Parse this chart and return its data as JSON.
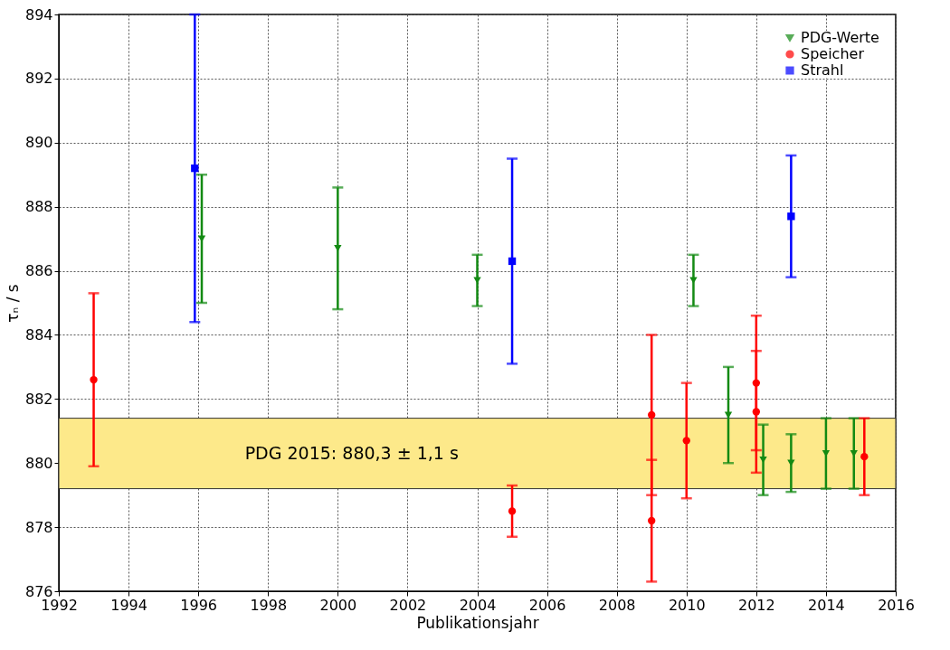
{
  "chart_data": {
    "type": "scatter",
    "xlabel": "Publikationsjahr",
    "ylabel": "τₙ / s",
    "xlim": [
      1992,
      2016
    ],
    "xticks": [
      1992,
      1994,
      1996,
      1998,
      2000,
      2002,
      2004,
      2006,
      2008,
      2010,
      2012,
      2014,
      2016
    ],
    "ylim": [
      876,
      894
    ],
    "yticks": [
      876,
      878,
      880,
      882,
      884,
      886,
      888,
      890,
      892,
      894
    ],
    "grid": true,
    "legend": "top right",
    "bands": [
      {
        "axis": "y",
        "from": 879.2,
        "to": 881.4,
        "label": "PDG 2015: 880,3 ± 1,1 s",
        "color": "#fde98a"
      }
    ],
    "series": [
      {
        "name": "PDG-Werte",
        "color": "#138a13",
        "marker": "triangle",
        "x": [
          1996.1,
          2000,
          2004,
          2010.2,
          2011.2,
          2012.2,
          2013,
          2014,
          2014.8
        ],
        "values": [
          887.0,
          886.7,
          885.7,
          885.7,
          881.5,
          880.1,
          880.0,
          880.3,
          880.3
        ],
        "errors": [
          [
            885.0,
            889.0
          ],
          [
            884.8,
            888.6
          ],
          [
            884.9,
            886.5
          ],
          [
            884.9,
            886.5
          ],
          [
            880.0,
            883.0
          ],
          [
            879.0,
            881.2
          ],
          [
            879.1,
            880.9
          ],
          [
            879.2,
            881.4
          ],
          [
            879.2,
            881.4
          ]
        ]
      },
      {
        "name": "Speicher",
        "color": "#ff0000",
        "marker": "circle",
        "x": [
          1993,
          2005,
          2009,
          2009,
          2010,
          2012,
          2012,
          2015.1
        ],
        "values": [
          882.6,
          878.5,
          881.5,
          878.2,
          880.7,
          882.5,
          881.6,
          880.2
        ],
        "errors": [
          [
            879.9,
            885.3
          ],
          [
            877.7,
            879.3
          ],
          [
            879.0,
            884.0
          ],
          [
            876.3,
            880.1
          ],
          [
            878.9,
            882.5
          ],
          [
            880.4,
            884.6
          ],
          [
            879.7,
            883.5
          ],
          [
            879.0,
            881.4
          ]
        ]
      },
      {
        "name": "Strahl",
        "color": "#0000ff",
        "marker": "square",
        "x": [
          1995.9,
          2005,
          2013
        ],
        "values": [
          889.2,
          886.3,
          887.7
        ],
        "errors": [
          [
            884.4,
            894.0
          ],
          [
            883.1,
            889.5
          ],
          [
            885.8,
            889.6
          ]
        ]
      }
    ]
  }
}
